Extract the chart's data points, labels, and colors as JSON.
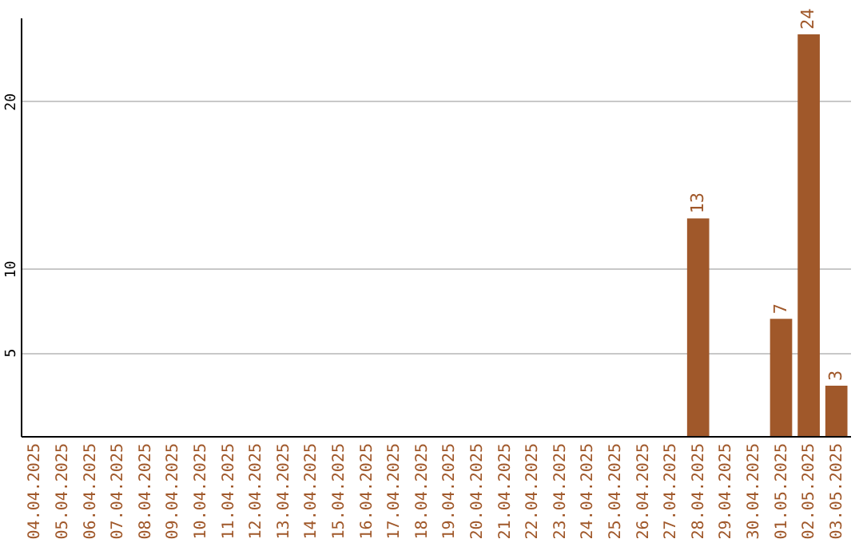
{
  "chart_data": {
    "type": "bar",
    "categories": [
      "04.04.2025",
      "05.04.2025",
      "06.04.2025",
      "07.04.2025",
      "08.04.2025",
      "09.04.2025",
      "10.04.2025",
      "11.04.2025",
      "12.04.2025",
      "13.04.2025",
      "14.04.2025",
      "15.04.2025",
      "16.04.2025",
      "17.04.2025",
      "18.04.2025",
      "19.04.2025",
      "20.04.2025",
      "21.04.2025",
      "22.04.2025",
      "23.04.2025",
      "24.04.2025",
      "25.04.2025",
      "26.04.2025",
      "27.04.2025",
      "28.04.2025",
      "29.04.2025",
      "30.04.2025",
      "01.05.2025",
      "02.05.2025",
      "03.05.2025"
    ],
    "values": [
      0,
      0,
      0,
      0,
      0,
      0,
      0,
      0,
      0,
      0,
      0,
      0,
      0,
      0,
      0,
      0,
      0,
      0,
      0,
      0,
      0,
      0,
      0,
      0,
      13,
      0,
      0,
      7,
      24,
      3
    ],
    "value_labels": [
      null,
      null,
      null,
      null,
      null,
      null,
      null,
      null,
      null,
      null,
      null,
      null,
      null,
      null,
      null,
      null,
      null,
      null,
      null,
      null,
      null,
      null,
      null,
      null,
      "13",
      null,
      null,
      "7",
      "24",
      "3"
    ],
    "color": "#a0582a",
    "ylim": [
      0,
      25
    ],
    "yticks": [
      5,
      10,
      20
    ],
    "grid": "y"
  }
}
